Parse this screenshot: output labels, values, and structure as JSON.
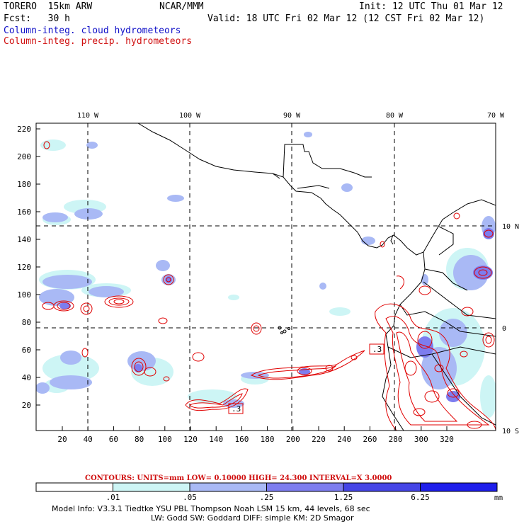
{
  "header": {
    "model": "TORERO  15km ARW",
    "org": "NCAR/MMM",
    "init": "Init: 12 UTC Thu 01 Mar 12",
    "fcst": "Fcst:   30 h",
    "valid": "Valid: 18 UTC Fri 02 Mar 12 (12 CST Fri 02 Mar 12)",
    "field_cloud": "Column-integ. cloud hydrometeors",
    "field_precip": "Column-integ. precip. hydrometeors"
  },
  "map": {
    "top_lon_labels": [
      "110 W",
      "100 W",
      "90 W",
      "80 W",
      "70 W"
    ],
    "right_lat_labels": [
      "10 N",
      "0",
      "10 S"
    ],
    "left_y_ticks": [
      "220",
      "200",
      "180",
      "160",
      "140",
      "120",
      "100",
      "80",
      "60",
      "40",
      "20"
    ],
    "bottom_x_ticks": [
      "20",
      "40",
      "60",
      "80",
      "100",
      "120",
      "140",
      "160",
      "180",
      "200",
      "220",
      "240",
      "260",
      "280",
      "300",
      "320"
    ],
    "box_labels": [
      ".3",
      ".3"
    ],
    "colors": {
      "coast": "#000000",
      "precip_contour": "#e00000",
      "grid": "#000000"
    }
  },
  "contours_line": "CONTOURS:  UNITS=mm  LOW= 0.10000      HIGH=  24.300      INTERVAL=X  3.0000",
  "colorbar": {
    "labels": [
      ".01",
      ".05",
      ".25",
      "1.25",
      "6.25"
    ],
    "units": "mm",
    "colors": [
      "#ffffff",
      "#cdf5f5",
      "#a9b9f5",
      "#7d7def",
      "#4545e6",
      "#1e1eeb"
    ]
  },
  "footer": {
    "line1": "Model Info: V3.3.1   Tiedtke YSU PBL  Thompson     Noah LSM  15 km,   44 levels,   68 sec",
    "line2": "LW: Godd SW: Goddard DIFF: simple KM: 2D Smagor"
  }
}
